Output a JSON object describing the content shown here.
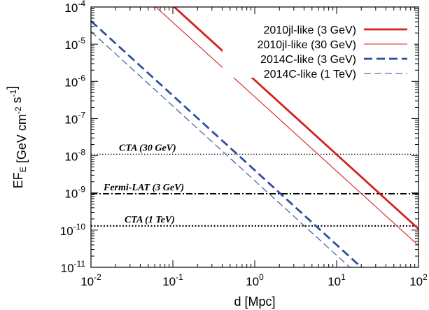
{
  "chart_data": {
    "type": "line",
    "xlabel": "d [Mpc]",
    "ylabel": "EF_E [GeV cm^-2 s^-1]",
    "xscale": "log",
    "yscale": "log",
    "xlim": [
      0.01,
      100
    ],
    "ylim": [
      1e-11,
      0.0001
    ],
    "grid": false,
    "legend_position": "top-right",
    "x_tick_labels": [
      {
        "base": "10",
        "exp": "-2"
      },
      {
        "base": "10",
        "exp": "-1"
      },
      {
        "base": "10",
        "exp": "0"
      },
      {
        "base": "10",
        "exp": "1"
      },
      {
        "base": "10",
        "exp": "2"
      }
    ],
    "y_tick_labels": [
      {
        "base": "10",
        "exp": "-4"
      },
      {
        "base": "10",
        "exp": "-5"
      },
      {
        "base": "10",
        "exp": "-6"
      },
      {
        "base": "10",
        "exp": "-7"
      },
      {
        "base": "10",
        "exp": "-8"
      },
      {
        "base": "10",
        "exp": "-9"
      },
      {
        "base": "10",
        "exp": "-10"
      },
      {
        "base": "10",
        "exp": "-11"
      }
    ],
    "series": [
      {
        "name": "2010jl-like (3 GeV)",
        "color": "#d62020",
        "style": "solid",
        "weight": "thick",
        "x": [
          0.104,
          100
        ],
        "y": [
          0.0001,
          1.08e-10
        ]
      },
      {
        "name": "2010jl-like (30 GeV)",
        "color": "#d62020",
        "style": "solid",
        "weight": "thin",
        "x": [
          0.062,
          100
        ],
        "y": [
          0.0001,
          3.85e-11
        ]
      },
      {
        "name": "2014C-like (3 GeV)",
        "color": "#2a4f9e",
        "style": "dashed",
        "weight": "thick",
        "x": [
          0.01,
          20
        ],
        "y": [
          4.2e-05,
          1e-11
        ]
      },
      {
        "name": "2014C-like (1 TeV)",
        "color": "#2a4f9e",
        "style": "dashed",
        "weight": "thin",
        "x": [
          0.01,
          14.5
        ],
        "y": [
          2.2e-05,
          1e-11
        ]
      }
    ],
    "reference_lines": [
      {
        "label": "CTA (30 GeV)",
        "y": 1.1e-08,
        "style": "dotted-thin"
      },
      {
        "label": "Fermi-LAT (3 GeV)",
        "y": 9.5e-10,
        "style": "dashdot"
      },
      {
        "label": "CTA (1 TeV)",
        "y": 1.3e-10,
        "style": "dotted-thick"
      }
    ]
  }
}
